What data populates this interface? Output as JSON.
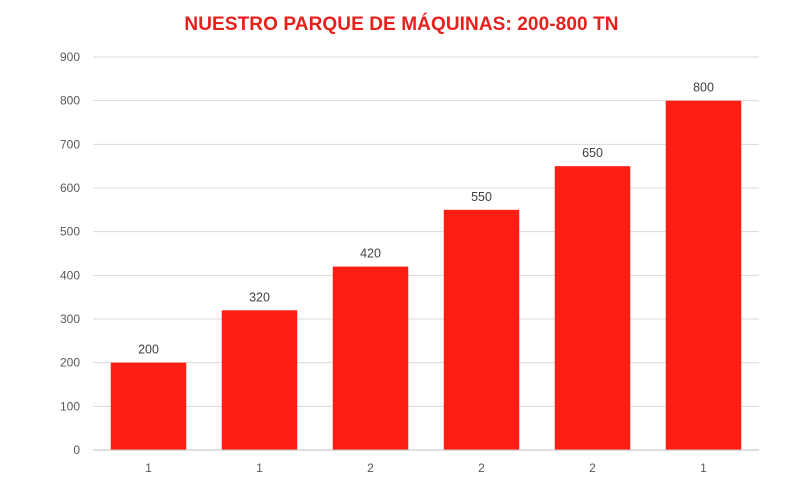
{
  "chart_data": {
    "type": "bar",
    "title": "NUESTRO PARQUE DE MÁQUINAS: 200-800 TN",
    "categories": [
      "1",
      "1",
      "2",
      "2",
      "2",
      "1"
    ],
    "values": [
      200,
      320,
      420,
      550,
      650,
      800
    ],
    "data_labels": [
      "200",
      "320",
      "420",
      "550",
      "650",
      "800"
    ],
    "xlabel": "",
    "ylabel": "",
    "ylim": [
      0,
      900
    ],
    "yticks": [
      0,
      100,
      200,
      300,
      400,
      500,
      600,
      700,
      800,
      900
    ],
    "grid": true,
    "legend": "none",
    "bar_color": "#ff1e14",
    "title_color": "#e8201b"
  }
}
